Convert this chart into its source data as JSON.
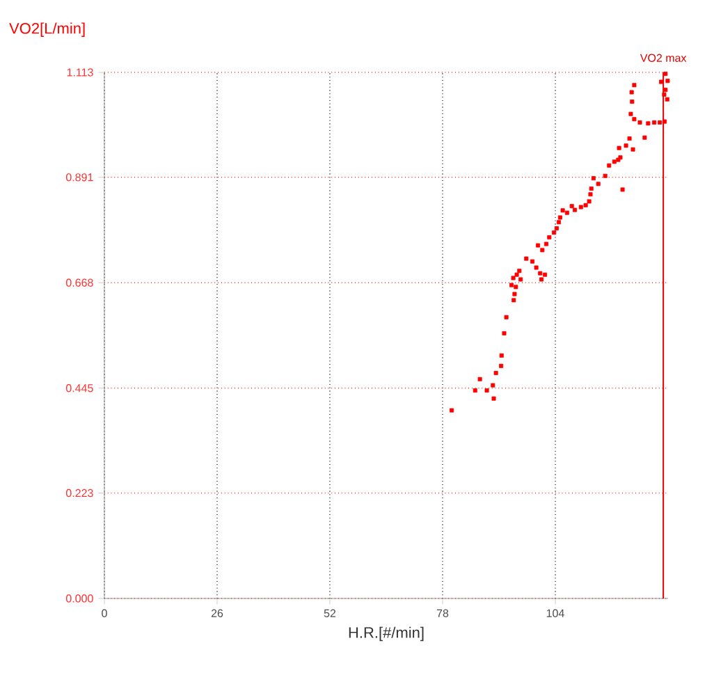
{
  "chart_data": {
    "type": "scatter",
    "xlabel": "H.R.[#/min]",
    "ylabel": "VO2[L/min]",
    "xlim": [
      0,
      130
    ],
    "ylim": [
      0,
      1.113
    ],
    "xticks": [
      0,
      26,
      52,
      78,
      104
    ],
    "yticks": [
      {
        "value": 0,
        "label": "0.000"
      },
      0.223,
      0.445,
      0.668,
      0.891,
      1.113
    ],
    "grid": true,
    "marker": "square",
    "ref_lines": [
      {
        "axis": "x",
        "value": 128.9,
        "label": "VO2 max",
        "color": "#e00000"
      }
    ],
    "series": [
      {
        "color": "#ff0000",
        "x": [
          80.1,
          85.5,
          86.6,
          88.2,
          89.6,
          89.8,
          90.3,
          91.5,
          91.6,
          92.2,
          92.7,
          94.4,
          94.6,
          93.9,
          94.3,
          95.1,
          95.7,
          94.9,
          96.0,
          97.3,
          98.7,
          99.6,
          100.5,
          101.6,
          100.8,
          100.0,
          101.0,
          101.9,
          102.6,
          103.7,
          104.3,
          104.8,
          105.1,
          105.7,
          106.7,
          107.8,
          108.5,
          109.9,
          111.0,
          111.8,
          112.1,
          112.3,
          112.8,
          113.9,
          115.5,
          116.4,
          117.6,
          118.5,
          119.0,
          119.5,
          118.7,
          120.3,
          121.9,
          121.1,
          124.6,
          121.4,
          122.2,
          123.5,
          125.4,
          126.8,
          128.1,
          129.2,
          121.7,
          121.6,
          122.2,
          128.4,
          129.4,
          129.4,
          129.8,
          129.1,
          129.9
        ],
        "values": [
          0.398,
          0.44,
          0.464,
          0.44,
          0.451,
          0.423,
          0.477,
          0.492,
          0.514,
          0.561,
          0.595,
          0.631,
          0.644,
          0.663,
          0.678,
          0.685,
          0.693,
          0.659,
          0.675,
          0.719,
          0.713,
          0.7,
          0.688,
          0.685,
          0.675,
          0.747,
          0.737,
          0.75,
          0.764,
          0.774,
          0.783,
          0.796,
          0.806,
          0.821,
          0.816,
          0.83,
          0.822,
          0.828,
          0.832,
          0.84,
          0.855,
          0.867,
          0.889,
          0.877,
          0.894,
          0.916,
          0.924,
          0.928,
          0.933,
          0.865,
          0.953,
          0.958,
          0.95,
          0.973,
          0.975,
          1.025,
          1.014,
          1.007,
          1.005,
          1.007,
          1.007,
          1.009,
          1.051,
          1.071,
          1.086,
          1.093,
          1.11,
          1.076,
          1.056,
          1.066,
          1.095
        ]
      }
    ]
  }
}
